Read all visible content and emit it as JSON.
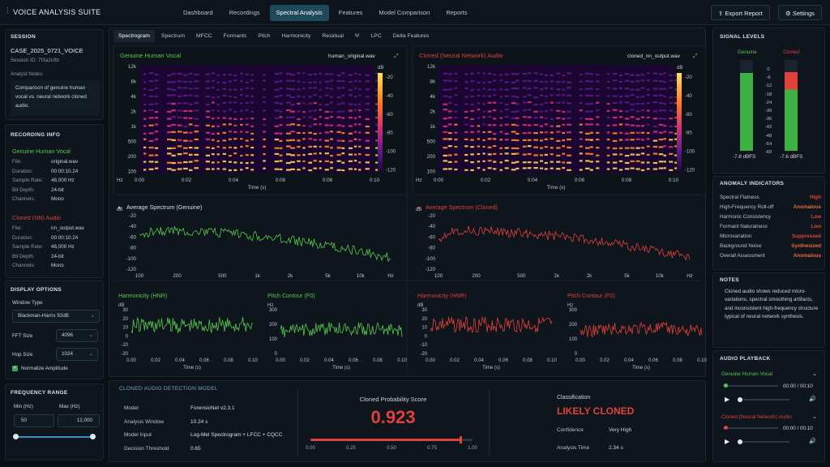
{
  "app": {
    "title": "VOICE ANALYSIS SUITE"
  },
  "nav": {
    "items": [
      "Dashboard",
      "Recordings",
      "Spectral Analysis",
      "Features",
      "Model Comparison",
      "Reports"
    ],
    "active": 2
  },
  "toolbar": {
    "export_label": "Export Report",
    "settings_label": "Settings"
  },
  "session": {
    "title": "SESSION",
    "case": "CASE_2025_0721_VOICE",
    "id_label": "Session ID: 7f3a2c9b",
    "notes_label": "Analyst Notes:",
    "notes": "Comparison of genuine human vocal vs. neural network cloned audio."
  },
  "recording_info": {
    "title": "RECORDING INFO",
    "genuine": {
      "name": "Genuine Human Vocal",
      "rows": [
        [
          "File:",
          "original.wav"
        ],
        [
          "Duration:",
          "00:00:10.24"
        ],
        [
          "Sample Rate:",
          "48,000 Hz"
        ],
        [
          "Bit Depth:",
          "24-bit"
        ],
        [
          "Channels:",
          "Mono"
        ]
      ]
    },
    "cloned": {
      "name": "Cloned (NN) Audio",
      "rows": [
        [
          "File:",
          "nn_output.wav"
        ],
        [
          "Duration:",
          "00:00:10.24"
        ],
        [
          "Sample Rate:",
          "48,000 Hz"
        ],
        [
          "Bit Depth:",
          "24-bit"
        ],
        [
          "Channels:",
          "Mono"
        ]
      ]
    }
  },
  "display_options": {
    "title": "DISPLAY OPTIONS",
    "window_type_label": "Window Type",
    "window_type": "Blackman-Harris 92dB",
    "fft_label": "FFT Size",
    "fft": "4096",
    "hop_label": "Hop Size",
    "hop": "1024",
    "normalize_label": "Normalize Amplitude"
  },
  "frequency_range": {
    "title": "FREQUENCY RANGE",
    "min_label": "Min (Hz)",
    "max_label": "Max (Hz)",
    "min": "50",
    "max": "12,000",
    "slider_min": 0.0,
    "slider_max": 1.0
  },
  "analysis_tabs": {
    "items": [
      "Spectrogram",
      "Spectrum",
      "MFCC",
      "Formants",
      "Pitch",
      "Harmonicity",
      "Residual",
      "Ψ",
      "LPC",
      "Delta Features"
    ],
    "active": 0
  },
  "spectrogram": {
    "genuine": {
      "title": "Genuine Human Vocal",
      "file": "human_original.wav"
    },
    "cloned": {
      "title": "Cloned (Neural Network) Audio",
      "file": "cloned_nn_output.wav"
    },
    "yticks": [
      "12k",
      "8k",
      "4k",
      "2k",
      "1k",
      "500",
      "200",
      "100"
    ],
    "xticks": [
      "0:00",
      "0:02",
      "0:04",
      "0:06",
      "0:08",
      "0:10"
    ],
    "xlabel": "Time (s)",
    "ylabel": "Hz",
    "cbar_unit": "dB",
    "cbar_ticks": [
      "-20",
      "-40",
      "-60",
      "-80",
      "-100",
      "-120"
    ]
  },
  "avg_spectrum": {
    "genuine_title": "Average Spectrum (Genuine)",
    "cloned_title": "Average Spectrum (Cloned)",
    "yticks": [
      "-20",
      "-40",
      "-60",
      "-80",
      "-100",
      "-120"
    ],
    "xticks": [
      "100",
      "200",
      "500",
      "1k",
      "2k",
      "5k",
      "10k",
      "Hz"
    ],
    "dB": "dB"
  },
  "small_plots": {
    "hnr_g": {
      "title": "Harmonicity (HNR)",
      "unit": "dB",
      "yticks": [
        "30",
        "20",
        "10",
        "0",
        "-10",
        "-20"
      ],
      "xticks": [
        "0.00",
        "0.02",
        "0.04",
        "0.06",
        "0.08",
        "0.10"
      ],
      "xlabel": "Time (s)"
    },
    "f0_g": {
      "title": "Pitch Contour (F0)",
      "unit": "Hz",
      "yticks": [
        "300",
        "200",
        "100",
        "0"
      ],
      "xticks": [
        "0.00",
        "0.02",
        "0.04",
        "0.06",
        "0.08",
        "0.10"
      ],
      "xlabel": "Time (s)"
    },
    "hnr_c": {
      "title": "Harmonicity (HNR)",
      "unit": "dB",
      "yticks": [
        "30",
        "20",
        "10",
        "0",
        "-10",
        "-20"
      ],
      "xticks": [
        "0.00",
        "0.02",
        "0.04",
        "0.06",
        "0.08",
        "0.10"
      ],
      "xlabel": "Time (s)"
    },
    "f0_c": {
      "title": "Pitch Contour (F0)",
      "unit": "Hz",
      "yticks": [
        "300",
        "200",
        "100",
        "0"
      ],
      "xticks": [
        "0.00",
        "0.02",
        "0.04",
        "0.06",
        "0.08",
        "0.10"
      ],
      "xlabel": "Time (s)"
    }
  },
  "model": {
    "title": "CLONED AUDIO DETECTION MODEL",
    "rows": [
      [
        "Model",
        "ForensicNet v2.3.1"
      ],
      [
        "Analysis Window",
        "10.24 s"
      ],
      [
        "Model Input",
        "Log-Mel Spectrogram + LFCC + CQCC"
      ],
      [
        "Decision Threshold",
        "0.65"
      ]
    ],
    "score_label": "Cloned Probability Score",
    "score": "0.923",
    "score_value": 0.923,
    "score_ticks": [
      "0.00",
      "0.25",
      "0.50",
      "0.75",
      "1.00"
    ],
    "class_label": "Classification",
    "class_value": "LIKELY CLONED",
    "confidence_label": "Confidence",
    "confidence": "Very High",
    "time_label": "Analysis Time",
    "time": "2.34 s"
  },
  "signal_levels": {
    "title": "SIGNAL LEVELS",
    "genuine_label": "Genuine",
    "cloned_label": "Cloned",
    "scale": [
      "0",
      "-6",
      "-12",
      "-18",
      "-24",
      "-30",
      "-36",
      "-42",
      "-48",
      "-54",
      "-60"
    ],
    "genuine_value": "-7.8 dBFS",
    "cloned_value": "-7.6 dBFS",
    "genuine_level": 0.86,
    "cloned_level": 0.87
  },
  "anomaly": {
    "title": "ANOMALY INDICATORS",
    "rows": [
      [
        "Spectral Flatness",
        "High"
      ],
      [
        "High-Frequency Roll-off",
        "Anomalous"
      ],
      [
        "Harmonic Consistency",
        "Low"
      ],
      [
        "Formant Naturalness",
        "Low"
      ],
      [
        "Microvariation",
        "Suppressed"
      ],
      [
        "Background Noise",
        "Synthesized"
      ],
      [
        "Overall Assessment",
        "Anomalous"
      ]
    ]
  },
  "notes": {
    "title": "NOTES",
    "text": "Cloned audio shows reduced micro-variations, spectral smoothing artifacts, and inconsistent high-frequency structure typical of neural network synthesis."
  },
  "playback": {
    "title": "AUDIO PLAYBACK",
    "genuine": {
      "name": "Genuine Human Vocal",
      "time": "00:00 / 00:10",
      "progress": 0.05
    },
    "cloned": {
      "name": "Cloned (Neural Network) Audio",
      "time": "00:00 / 00:10",
      "progress": 0.05
    }
  },
  "colors": {
    "genuine": "#58c94d",
    "cloned": "#e0413a",
    "accent": "#1f4a5a"
  }
}
